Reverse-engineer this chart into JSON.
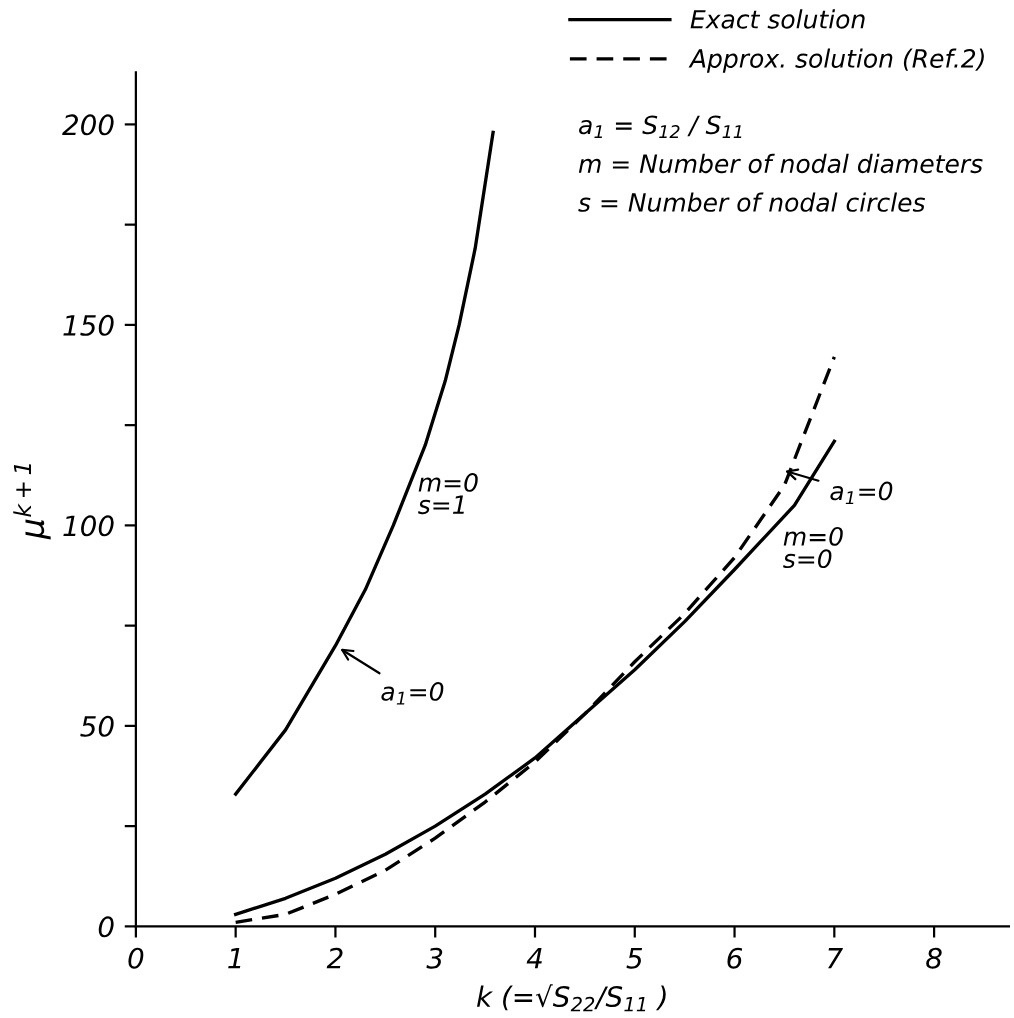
{
  "chart_data": {
    "type": "line",
    "xlabel": "k (=√S$_{22}$/S$_{11}$ )",
    "ylabel": "μ$^{k+1}$",
    "series": [
      {
        "name": "Exact solution",
        "color": "#000000",
        "line_style": "solid",
        "x": [
          1,
          1.5,
          2,
          2.3,
          2.58,
          2.9,
          3.1,
          3.24,
          3.4,
          3.58
        ],
        "values": [
          33,
          49,
          70,
          84,
          100,
          120,
          136,
          150,
          169,
          198
        ]
      },
      {
        "color": "#000000",
        "line_style": "solid",
        "x": [
          1,
          1.5,
          2,
          2.5,
          3,
          3.5,
          4,
          4.5,
          5,
          5.5,
          6,
          6.6,
          7
        ],
        "values": [
          3,
          7,
          12,
          18,
          25,
          33,
          42,
          53,
          64,
          76,
          89,
          105,
          121
        ]
      },
      {
        "name": "Approx. solution (Ref.2)",
        "color": "#000000",
        "line_style": "dashed",
        "x": [
          1,
          1.5,
          2,
          2.5,
          3,
          3.5,
          4,
          4.5,
          5,
          5.5,
          6,
          6.5,
          7
        ],
        "values": [
          1,
          3,
          8,
          14,
          22,
          31,
          41,
          53,
          66,
          78,
          92,
          110,
          142
        ]
      }
    ],
    "annotations": [
      "a$_{1}$ = S$_{12}$ / S$_{11}$",
      "m = Number of nodal diameters",
      "s = Number of nodal circles",
      "m=0\ns=1",
      "m=0\ns=0",
      {
        "text": "a$_{1}$=0",
        "x": 2,
        "y": 70
      },
      {
        "text": "a$_{1}$=0",
        "x": 6.45,
        "y": 114
      }
    ],
    "xlim": [
      0,
      8.75
    ],
    "ylim": [
      0,
      213
    ],
    "xticks": [
      0,
      1,
      2,
      3,
      4,
      5,
      6,
      7,
      8
    ],
    "yticks": [
      0,
      {
        "value": 25,
        "label": null
      },
      50,
      {
        "value": 75,
        "label": null
      },
      100,
      {
        "value": 125,
        "label": null
      },
      150,
      {
        "value": 175,
        "label": null
      },
      200
    ],
    "grid": false,
    "legend": "top right"
  }
}
